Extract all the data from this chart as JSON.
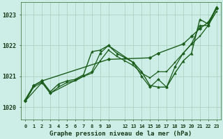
{
  "bg_color": "#cceee6",
  "grid_color": "#aaccbb",
  "line_color": "#1a5c1a",
  "title": "Graphe pression niveau de la mer (hPa)",
  "ylim": [
    1019.6,
    1023.4
  ],
  "yticks": [
    1020,
    1021,
    1022,
    1023
  ],
  "series": [
    {
      "x": [
        0,
        1,
        2,
        10,
        15,
        16,
        19,
        20,
        21,
        22,
        23
      ],
      "y": [
        1020.2,
        1020.7,
        1020.85,
        1021.55,
        1021.6,
        1021.75,
        1022.05,
        1022.3,
        1022.55,
        1022.75,
        1023.2
      ],
      "marker": "D",
      "markersize": 2.5,
      "linewidth": 1.0
    },
    {
      "x": [
        0,
        1,
        2,
        3,
        4,
        5,
        6,
        7,
        8,
        9,
        10,
        11,
        12,
        13,
        14,
        15,
        16,
        17,
        18,
        19,
        20,
        21,
        22,
        23
      ],
      "y": [
        1020.25,
        1020.7,
        1020.85,
        1020.5,
        1020.75,
        1020.85,
        1020.9,
        1021.05,
        1021.8,
        1021.85,
        1022.0,
        1021.75,
        1021.6,
        1021.45,
        1021.15,
        1020.7,
        1020.65,
        1020.65,
        1021.1,
        1021.5,
        1021.75,
        1022.85,
        1022.7,
        1023.25
      ],
      "marker": "^",
      "markersize": 2.5,
      "linewidth": 1.0
    },
    {
      "x": [
        0,
        1,
        2,
        3,
        4,
        5,
        6,
        7,
        8,
        9,
        10,
        11,
        12,
        13,
        14,
        15,
        16,
        17,
        18,
        19,
        20,
        21,
        22,
        23
      ],
      "y": [
        1020.2,
        1020.65,
        1020.8,
        1020.45,
        1020.65,
        1020.8,
        1020.85,
        1021.0,
        1021.1,
        1021.5,
        1021.85,
        1021.65,
        1021.5,
        1021.35,
        1021.1,
        1020.95,
        1021.15,
        1021.15,
        1021.45,
        1021.75,
        1022.05,
        1022.3,
        1022.65,
        1023.1
      ],
      "marker": "s",
      "markersize": 2.0,
      "linewidth": 0.9
    },
    {
      "x": [
        0,
        2,
        3,
        8,
        9,
        10,
        13,
        14,
        15,
        16,
        17,
        18,
        19,
        20,
        21,
        22,
        23
      ],
      "y": [
        1020.2,
        1020.8,
        1020.45,
        1021.15,
        1021.75,
        1022.0,
        1021.45,
        1021.0,
        1020.65,
        1020.9,
        1020.65,
        1021.3,
        1021.75,
        1022.05,
        1022.65,
        1022.65,
        1023.2
      ],
      "marker": "D",
      "markersize": 2.0,
      "linewidth": 0.9
    }
  ]
}
